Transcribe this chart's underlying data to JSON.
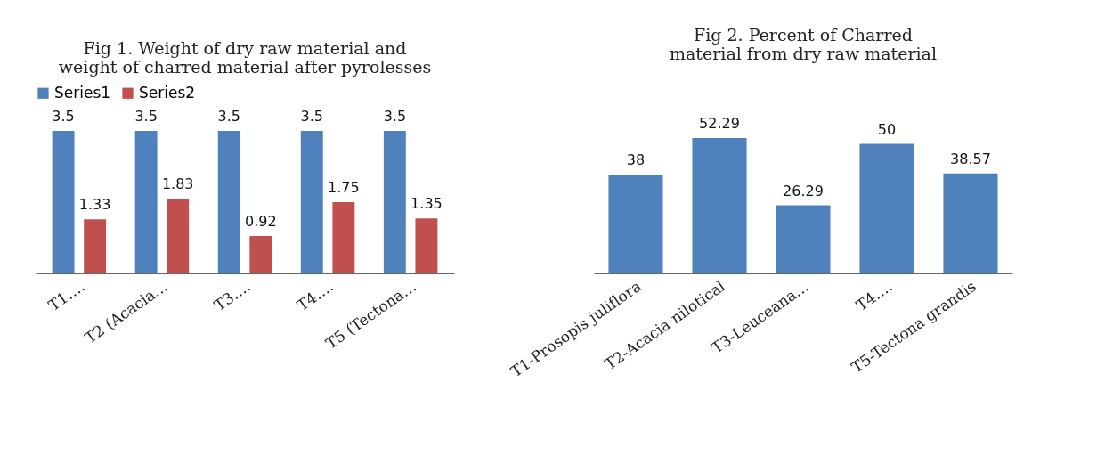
{
  "chart_data": [
    {
      "type": "bar",
      "title": "Fig 1. Weight of dry raw material and weight of charred material after pyrolesses",
      "categories": [
        "T1….",
        "T2 (Acacia…",
        "T3….",
        "T4….",
        "T5 (Tectona…"
      ],
      "series": [
        {
          "name": "Series1",
          "color": "#4f81bd",
          "values": [
            3.5,
            3.5,
            3.5,
            3.5,
            3.5
          ]
        },
        {
          "name": "Series2",
          "color": "#c0504d",
          "values": [
            1.33,
            1.83,
            0.92,
            1.75,
            1.35
          ]
        }
      ],
      "data_labels": true,
      "legend": "top",
      "grid": false
    },
    {
      "type": "bar",
      "title": "Fig 2. Percent of Charred material from dry raw material",
      "categories": [
        "T1-Prosopis juliflora",
        "T2-Acacia nilotical",
        "T3-Leuceana…",
        "T4….",
        "T5-Tectona grandis"
      ],
      "values": [
        38,
        52.29,
        26.29,
        50,
        38.57
      ],
      "color": "#4f81bd",
      "data_labels": true,
      "grid": false
    }
  ]
}
